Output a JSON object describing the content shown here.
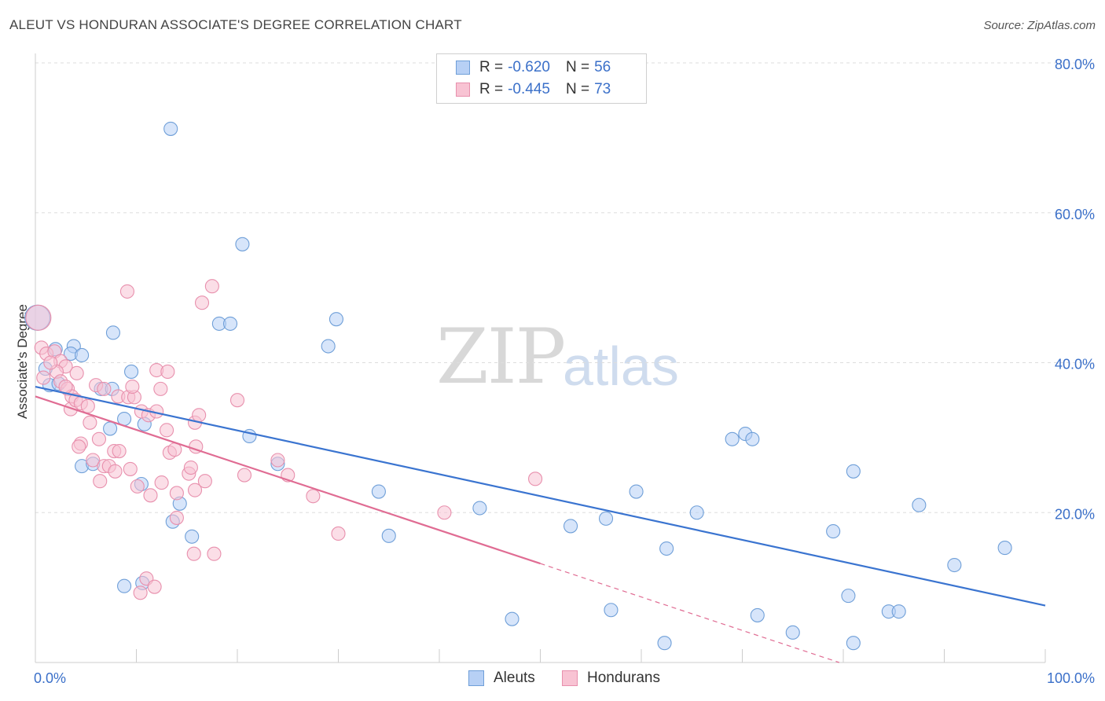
{
  "title": "ALEUT VS HONDURAN ASSOCIATE'S DEGREE CORRELATION CHART",
  "source": "Source: ZipAtlas.com",
  "watermark": {
    "zip": "ZIP",
    "atlas": "atlas"
  },
  "legend": {
    "rows": [
      {
        "r_label": "R = ",
        "r_value": "-0.620",
        "n_label": "N = ",
        "n_value": "56"
      },
      {
        "r_label": "R = ",
        "r_value": "-0.445",
        "n_label": "N = ",
        "n_value": "73"
      }
    ]
  },
  "colors": {
    "aleut_fill": "#b7d0f5",
    "aleut_stroke": "#6f9fd8",
    "aleut_line": "#3a74d0",
    "honduran_fill": "#f8c3d3",
    "honduran_stroke": "#e890ad",
    "honduran_line": "#e06c93",
    "grid": "#dddddd",
    "axis_text": "#3b70c9"
  },
  "chart_data": {
    "type": "scatter",
    "title": "ALEUT VS HONDURAN ASSOCIATE'S DEGREE CORRELATION CHART",
    "xlabel": "",
    "ylabel": "Associate's Degree",
    "xlim": [
      0,
      100
    ],
    "ylim": [
      0,
      80
    ],
    "x_tick_labels": [
      "0.0%",
      "100.0%"
    ],
    "y_tick_labels": [
      "80.0%",
      "60.0%",
      "40.0%",
      "20.0%"
    ],
    "y_ticks": [
      80,
      60,
      40,
      20
    ],
    "series": [
      {
        "name": "Aleuts",
        "r": -0.62,
        "n": 56,
        "trend": {
          "x0": 0,
          "y0": 36.8,
          "x1": 100,
          "y1": 7.6
        },
        "points": [
          [
            0.2,
            46.0
          ],
          [
            2.0,
            41.8
          ],
          [
            3.8,
            42.2
          ],
          [
            1.0,
            39.2
          ],
          [
            3.5,
            41.2
          ],
          [
            4.6,
            41.0
          ],
          [
            1.4,
            37.0
          ],
          [
            2.3,
            37.2
          ],
          [
            6.5,
            36.5
          ],
          [
            7.6,
            36.5
          ],
          [
            13.4,
            71.2
          ],
          [
            20.5,
            55.8
          ],
          [
            7.7,
            44.0
          ],
          [
            9.5,
            38.8
          ],
          [
            18.2,
            45.2
          ],
          [
            19.3,
            45.2
          ],
          [
            29.8,
            45.8
          ],
          [
            29.0,
            42.2
          ],
          [
            8.8,
            32.5
          ],
          [
            10.8,
            31.8
          ],
          [
            7.4,
            31.2
          ],
          [
            21.2,
            30.2
          ],
          [
            4.6,
            26.2
          ],
          [
            5.7,
            26.5
          ],
          [
            24.0,
            26.5
          ],
          [
            10.5,
            23.8
          ],
          [
            34.0,
            22.8
          ],
          [
            14.3,
            21.2
          ],
          [
            13.6,
            18.8
          ],
          [
            15.5,
            16.8
          ],
          [
            35.0,
            16.9
          ],
          [
            44.0,
            20.6
          ],
          [
            53.0,
            18.2
          ],
          [
            59.5,
            22.8
          ],
          [
            56.5,
            19.2
          ],
          [
            69.0,
            29.8
          ],
          [
            70.3,
            30.5
          ],
          [
            71.0,
            29.8
          ],
          [
            65.5,
            20.0
          ],
          [
            81.0,
            25.5
          ],
          [
            87.5,
            21.0
          ],
          [
            79.0,
            17.5
          ],
          [
            62.5,
            15.2
          ],
          [
            96.0,
            15.3
          ],
          [
            91.0,
            13.0
          ],
          [
            8.8,
            10.2
          ],
          [
            10.6,
            10.6
          ],
          [
            47.2,
            5.8
          ],
          [
            57.0,
            7.0
          ],
          [
            71.5,
            6.3
          ],
          [
            75.0,
            4.0
          ],
          [
            80.5,
            8.9
          ],
          [
            84.5,
            6.8
          ],
          [
            85.5,
            6.8
          ],
          [
            62.3,
            2.6
          ],
          [
            81.0,
            2.6
          ]
        ]
      },
      {
        "name": "Hondurans",
        "r": -0.445,
        "n": 73,
        "trend": {
          "x0": 0,
          "y0": 35.5,
          "x1": 50,
          "y1": 13.2
        },
        "trend_dashed": {
          "x0": 50,
          "y0": 13.2,
          "x1": 100,
          "y1": -9.1
        },
        "points": [
          [
            0.3,
            46.0
          ],
          [
            0.6,
            42.0
          ],
          [
            1.1,
            41.2
          ],
          [
            1.9,
            41.5
          ],
          [
            2.5,
            40.2
          ],
          [
            3.0,
            39.5
          ],
          [
            2.1,
            38.8
          ],
          [
            4.1,
            38.6
          ],
          [
            2.5,
            37.5
          ],
          [
            3.2,
            36.5
          ],
          [
            3.6,
            35.5
          ],
          [
            3.5,
            33.8
          ],
          [
            4.0,
            35.0
          ],
          [
            4.5,
            34.6
          ],
          [
            6.0,
            37.0
          ],
          [
            6.8,
            36.5
          ],
          [
            5.2,
            34.2
          ],
          [
            8.2,
            35.5
          ],
          [
            9.2,
            35.4
          ],
          [
            9.8,
            35.4
          ],
          [
            9.6,
            36.8
          ],
          [
            12.0,
            39.0
          ],
          [
            13.1,
            38.8
          ],
          [
            12.4,
            36.5
          ],
          [
            10.5,
            33.5
          ],
          [
            11.2,
            33.0
          ],
          [
            5.4,
            32.0
          ],
          [
            6.3,
            29.8
          ],
          [
            4.5,
            29.2
          ],
          [
            4.3,
            28.8
          ],
          [
            7.8,
            28.2
          ],
          [
            8.3,
            28.2
          ],
          [
            13.0,
            31.0
          ],
          [
            13.3,
            28.0
          ],
          [
            13.8,
            28.4
          ],
          [
            15.8,
            32.0
          ],
          [
            15.9,
            28.8
          ],
          [
            5.7,
            27.0
          ],
          [
            6.4,
            24.2
          ],
          [
            6.8,
            26.2
          ],
          [
            7.3,
            26.2
          ],
          [
            7.9,
            25.5
          ],
          [
            9.4,
            25.8
          ],
          [
            12.5,
            24.0
          ],
          [
            14.0,
            22.6
          ],
          [
            15.2,
            25.2
          ],
          [
            15.4,
            26.0
          ],
          [
            16.8,
            24.2
          ],
          [
            15.8,
            23.0
          ],
          [
            10.1,
            23.5
          ],
          [
            11.4,
            22.3
          ],
          [
            9.1,
            49.5
          ],
          [
            17.5,
            50.2
          ],
          [
            16.5,
            48.0
          ],
          [
            20.0,
            35.0
          ],
          [
            20.7,
            25.0
          ],
          [
            24.0,
            27.0
          ],
          [
            25.0,
            25.0
          ],
          [
            27.5,
            22.2
          ],
          [
            30.0,
            17.2
          ],
          [
            40.5,
            20.0
          ],
          [
            49.5,
            24.5
          ],
          [
            14.0,
            19.3
          ],
          [
            15.7,
            14.5
          ],
          [
            17.7,
            14.5
          ],
          [
            10.4,
            9.3
          ],
          [
            11.0,
            11.2
          ],
          [
            11.8,
            10.1
          ],
          [
            16.2,
            33.0
          ],
          [
            1.5,
            40.0
          ],
          [
            0.8,
            38.0
          ],
          [
            3.0,
            36.8
          ],
          [
            12.0,
            33.5
          ]
        ]
      }
    ]
  }
}
